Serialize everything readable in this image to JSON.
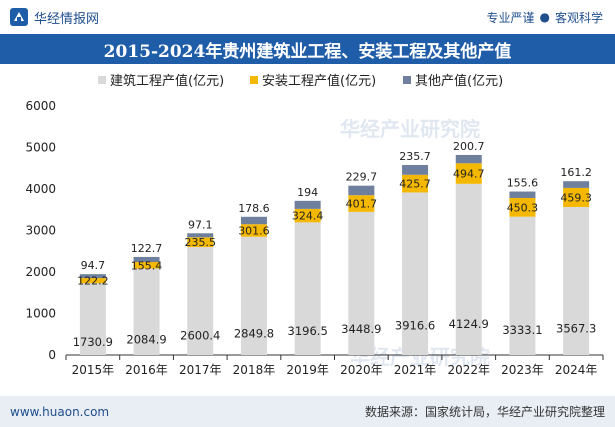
{
  "header": {
    "brand_name": "华经情报网",
    "slogan_left": "专业严谨",
    "slogan_dot": "●",
    "slogan_right": "客观科学"
  },
  "title": "2015-2024年贵州建筑业工程、安装工程及其他产值",
  "footer": {
    "url": "www.huaon.com",
    "source": "数据来源：国家统计局，华经产业研究院整理"
  },
  "colors": {
    "brand": "#1f5da9",
    "building": "#d9d9d9",
    "install": "#f5b800",
    "other": "#6f7f9e"
  },
  "chart_data": {
    "type": "bar",
    "stacked": true,
    "title": "2015-2024年贵州建筑业工程、安装工程及其他产值",
    "categories": [
      "2015年",
      "2016年",
      "2017年",
      "2018年",
      "2019年",
      "2020年",
      "2021年",
      "2022年",
      "2023年",
      "2024年"
    ],
    "series": [
      {
        "name": "建筑工程产值(亿元)",
        "values": [
          1730.9,
          2084.9,
          2600.4,
          2849.8,
          3196.5,
          3448.9,
          3916.6,
          4124.9,
          3333.1,
          3567.3
        ]
      },
      {
        "name": "安装工程产值(亿元)",
        "values": [
          122.2,
          155.4,
          235.5,
          301.6,
          324.4,
          401.7,
          425.7,
          494.7,
          450.3,
          459.3
        ]
      },
      {
        "name": "其他产值(亿元)",
        "values": [
          94.7,
          122.7,
          97.1,
          178.6,
          194,
          229.7,
          235.7,
          200.7,
          155.6,
          161.2
        ]
      }
    ],
    "yticks": [
      0,
      1000,
      2000,
      3000,
      4000,
      5000,
      6000
    ],
    "ylim": [
      0,
      6000
    ],
    "grid": false,
    "legend_position": "top-center"
  }
}
